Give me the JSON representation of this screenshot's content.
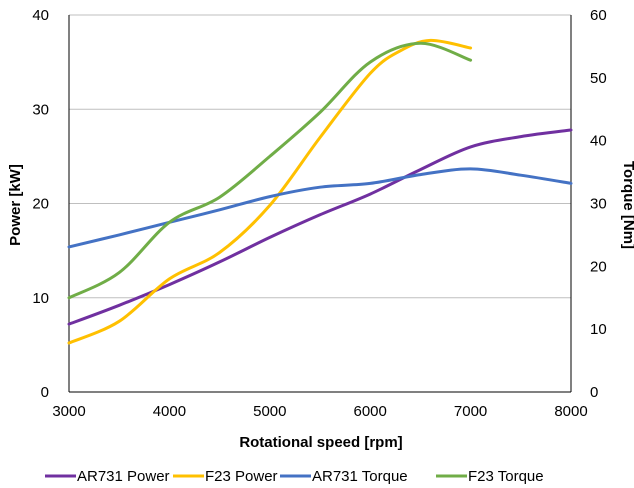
{
  "chart_data": {
    "type": "line",
    "xlabel": "Rotational speed [rpm]",
    "ylabel_left": "Power [kW]",
    "ylabel_right": "Torque [Nm]",
    "xlim": [
      3000,
      8000
    ],
    "ylim_left": [
      0,
      40
    ],
    "ylim_right": [
      0,
      60
    ],
    "x_ticks": [
      3000,
      4000,
      5000,
      6000,
      7000,
      8000
    ],
    "y_left_ticks": [
      0,
      10,
      20,
      30,
      40
    ],
    "y_right_ticks": [
      0,
      10,
      20,
      30,
      40,
      50,
      60
    ],
    "grid": "horizontal",
    "legend_position": "bottom",
    "series": [
      {
        "name": "AR731 Power",
        "axis": "left",
        "color": "#7030A0",
        "x": [
          3000,
          3500,
          4000,
          4500,
          5000,
          5500,
          6000,
          6500,
          7000,
          7500,
          8000
        ],
        "y": [
          7.2,
          9.2,
          11.4,
          13.8,
          16.4,
          18.8,
          21.0,
          23.6,
          26.0,
          27.1,
          27.8
        ]
      },
      {
        "name": "F23 Power",
        "axis": "left",
        "color": "#FFC000",
        "x": [
          3000,
          3500,
          4000,
          4500,
          5000,
          5500,
          6000,
          6300,
          6600,
          7000
        ],
        "y": [
          5.2,
          7.5,
          12.0,
          14.8,
          19.8,
          27.0,
          33.8,
          36.2,
          37.3,
          36.5
        ]
      },
      {
        "name": "AR731 Torque",
        "axis": "right",
        "color": "#4472C4",
        "x": [
          3000,
          3500,
          4000,
          4500,
          5000,
          5500,
          6000,
          6500,
          7000,
          7500,
          8000
        ],
        "y": [
          23.1,
          25.0,
          27.0,
          29.0,
          31.1,
          32.6,
          33.2,
          34.6,
          35.5,
          34.5,
          33.2
        ]
      },
      {
        "name": "F23 Torque",
        "axis": "right",
        "color": "#70AD47",
        "x": [
          3000,
          3500,
          4000,
          4500,
          5000,
          5500,
          6000,
          6500,
          7000
        ],
        "y": [
          15.0,
          19.0,
          27.0,
          31.0,
          37.5,
          44.5,
          52.5,
          55.5,
          52.8
        ]
      }
    ]
  }
}
